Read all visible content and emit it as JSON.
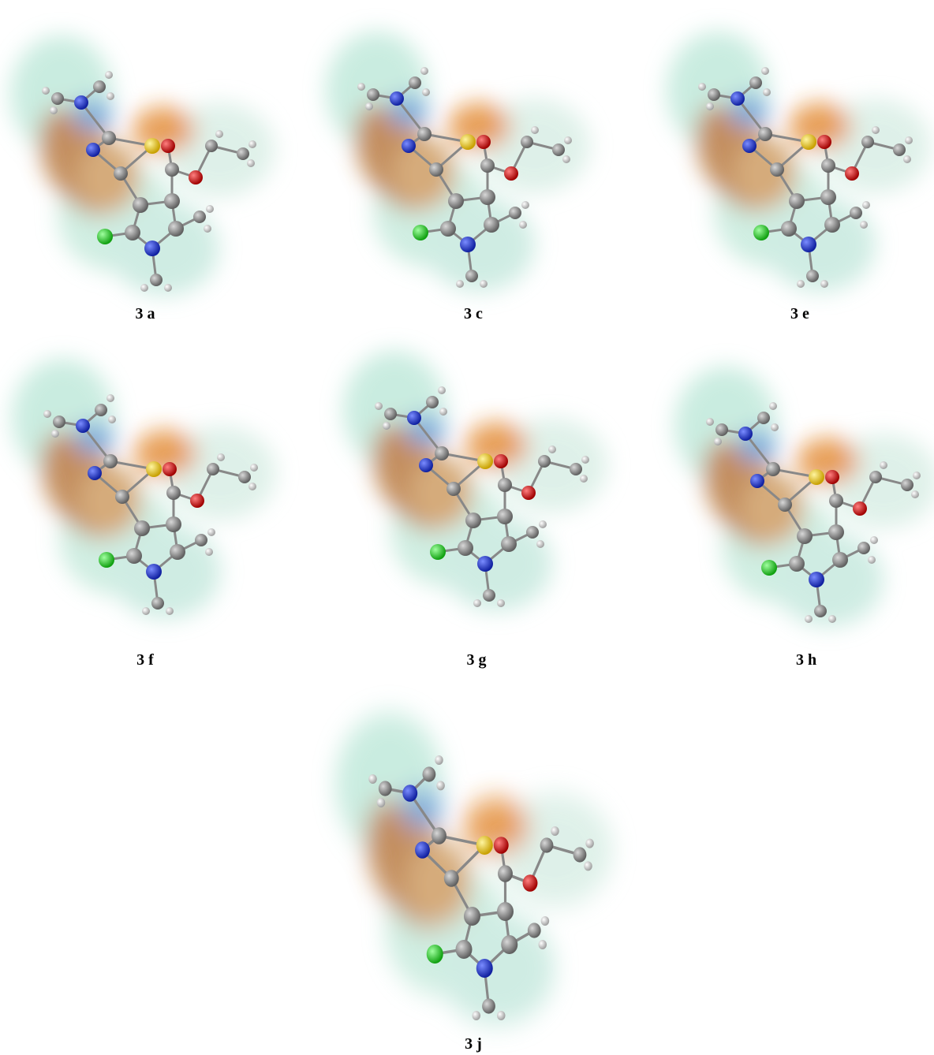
{
  "figure": {
    "panels": [
      {
        "label": "3 a"
      },
      {
        "label": "3 c"
      },
      {
        "label": "3 e"
      },
      {
        "label": "3 f"
      },
      {
        "label": "3 g"
      },
      {
        "label": "3 h"
      },
      {
        "label": "3 j"
      }
    ]
  }
}
